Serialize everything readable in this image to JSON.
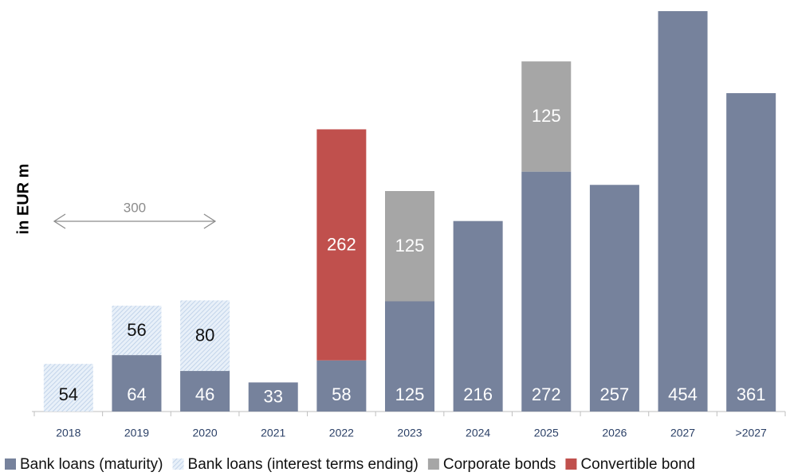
{
  "chart_data": {
    "type": "stacked_bar",
    "y_label": "in EUR m",
    "categories": [
      "2018",
      "2019",
      "2020",
      "2021",
      "2022",
      "2023",
      "2024",
      "2025",
      "2026",
      "2027",
      ">2027"
    ],
    "series": [
      {
        "name": "Bank loans (maturity)",
        "color": "#76829c",
        "values": [
          null,
          64,
          46,
          33,
          58,
          125,
          216,
          272,
          257,
          454,
          361
        ]
      },
      {
        "name": "Bank loans (interest terms ending)",
        "color": "#dce8f5",
        "pattern": "hatched",
        "values": [
          54,
          56,
          80,
          null,
          null,
          null,
          null,
          null,
          null,
          null,
          null
        ]
      },
      {
        "name": "Corporate bonds",
        "color": "#a6a6a6",
        "values": [
          null,
          null,
          null,
          null,
          null,
          125,
          null,
          125,
          null,
          null,
          null
        ]
      },
      {
        "name": "Convertible bond",
        "color": "#c0504d",
        "values": [
          null,
          null,
          null,
          null,
          262,
          null,
          null,
          null,
          null,
          null,
          null
        ]
      }
    ],
    "ylim": [
      0,
      454
    ],
    "annotations": [
      {
        "text": "300",
        "from": "2018",
        "to": "2020"
      }
    ]
  }
}
